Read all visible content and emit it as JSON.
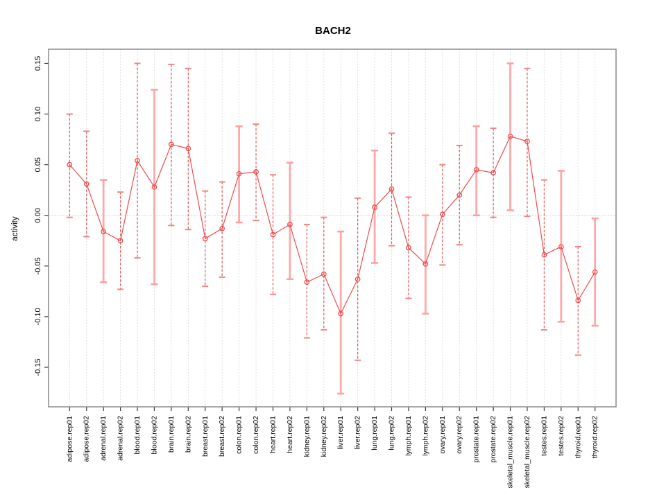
{
  "chart_data": {
    "type": "line",
    "subtype": "errorbar-ci-plot",
    "title": "BACH2",
    "xlabel": "",
    "ylabel": "activity",
    "legend": "none",
    "grid": "vertical-dotted-per-category-plus-dotted-zero-line",
    "marker": "open-circle",
    "ylim": [
      -0.189,
      0.164
    ],
    "yticks": [
      0.15,
      0.1,
      0.05,
      0.0,
      -0.05,
      -0.1,
      -0.15
    ],
    "categories": [
      "adipose.rep01",
      "adipose.rep02",
      "adrenal.rep01",
      "adrenal.rep02",
      "blood.rep01",
      "blood.rep02",
      "brain.rep01",
      "brain.rep02",
      "breast.rep01",
      "breast.rep02",
      "colon.rep01",
      "colon.rep02",
      "heart.rep01",
      "heart.rep02",
      "kidney.rep01",
      "kidney.rep02",
      "liver.rep01",
      "liver.rep02",
      "lung.rep01",
      "lung.rep02",
      "lymph.rep01",
      "lymph.rep02",
      "ovary.rep01",
      "ovary.rep02",
      "prostate.rep01",
      "prostate.rep02",
      "skeletal_muscle.rep01",
      "skeletal_muscle.rep02",
      "testes.rep01",
      "testes.rep02",
      "thyroid.rep01",
      "thyroid.rep02"
    ],
    "series": [
      {
        "name": "activity",
        "values": [
          0.05,
          0.031,
          -0.016,
          -0.025,
          0.054,
          0.028,
          0.07,
          0.066,
          -0.023,
          -0.013,
          0.041,
          0.043,
          -0.019,
          -0.009,
          -0.066,
          -0.058,
          -0.097,
          -0.063,
          0.008,
          0.026,
          -0.032,
          -0.048,
          0.001,
          0.02,
          0.045,
          0.042,
          0.078,
          0.073,
          -0.039,
          -0.031,
          -0.084,
          -0.056
        ],
        "error_high": [
          0.1,
          0.083,
          0.035,
          0.023,
          0.15,
          0.124,
          0.149,
          0.145,
          0.024,
          0.033,
          0.088,
          0.09,
          0.04,
          0.052,
          -0.009,
          -0.002,
          -0.016,
          0.017,
          0.064,
          0.081,
          0.018,
          0.0,
          0.05,
          0.069,
          0.088,
          0.086,
          0.15,
          0.145,
          0.035,
          0.044,
          -0.031,
          -0.003
        ],
        "error_low": [
          -0.002,
          -0.021,
          -0.066,
          -0.073,
          -0.042,
          -0.068,
          -0.01,
          -0.014,
          -0.07,
          -0.061,
          -0.007,
          -0.005,
          -0.078,
          -0.063,
          -0.121,
          -0.113,
          -0.176,
          -0.143,
          -0.047,
          -0.03,
          -0.082,
          -0.097,
          -0.049,
          -0.029,
          0.0,
          -0.002,
          0.005,
          -0.001,
          -0.113,
          -0.105,
          -0.138,
          -0.109
        ],
        "bar_styles": [
          "dashed",
          "dashed",
          "solid",
          "dashed",
          "dashed",
          "solid",
          "dashed",
          "dashed",
          "dashed",
          "dashed",
          "solid",
          "dashed",
          "dashed",
          "solid",
          "dashed",
          "dashed",
          "solid",
          "dashed",
          "solid",
          "dashed",
          "dashed",
          "solid",
          "dashed",
          "dashed",
          "solid",
          "dashed",
          "solid",
          "dashed",
          "dashed",
          "solid",
          "dashed",
          "solid"
        ]
      }
    ],
    "colors": {
      "point": "#ef4b4b",
      "line": "#ef4b4b",
      "bar_solid": "#ffa8a8",
      "bar_dashed": "#e45858",
      "cap_solid": "#ffa0a0",
      "cap_dashed": "#f28484",
      "grid": "#dcdcdc",
      "zero_line": "#dccccc",
      "box": "#828282",
      "tick": "#3a3a3a"
    }
  }
}
